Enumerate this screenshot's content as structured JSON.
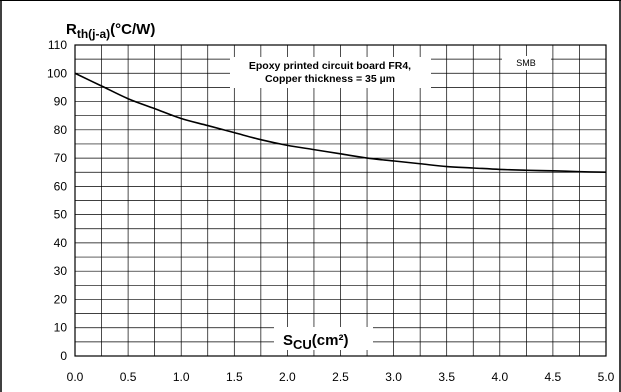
{
  "chart_data": {
    "type": "line",
    "ylabel": {
      "main": "R",
      "sub": "th(j-a)",
      "unit": "(°C/W)"
    },
    "xlabel": {
      "main": "S",
      "sub": "CU",
      "unit": "(cm²)"
    },
    "annotation": [
      "Epoxy printed circuit board FR4,",
      "Copper thickness = 35 µm"
    ],
    "tag": "SMB",
    "xlim": [
      0,
      5
    ],
    "ylim": [
      0,
      110
    ],
    "x_ticks": [
      "0.0",
      "0.5",
      "1.0",
      "1.5",
      "2.0",
      "2.5",
      "3.0",
      "3.5",
      "4.0",
      "4.5",
      "5.0"
    ],
    "y_ticks": [
      "0",
      "10",
      "20",
      "30",
      "40",
      "50",
      "60",
      "70",
      "80",
      "90",
      "100",
      "110"
    ],
    "grid": true,
    "series": [
      {
        "x": [
          0.0,
          0.25,
          0.5,
          0.75,
          1.0,
          1.25,
          1.5,
          1.75,
          2.0,
          2.25,
          2.5,
          2.75,
          3.0,
          3.25,
          3.5,
          3.75,
          4.0,
          4.25,
          4.5,
          4.75,
          5.0
        ],
        "y": [
          100,
          95.5,
          91,
          87.5,
          84,
          81.5,
          79,
          76.5,
          74.5,
          73,
          71.5,
          70,
          69,
          68,
          67,
          66.5,
          66,
          65.7,
          65.5,
          65.2,
          65
        ]
      }
    ]
  }
}
